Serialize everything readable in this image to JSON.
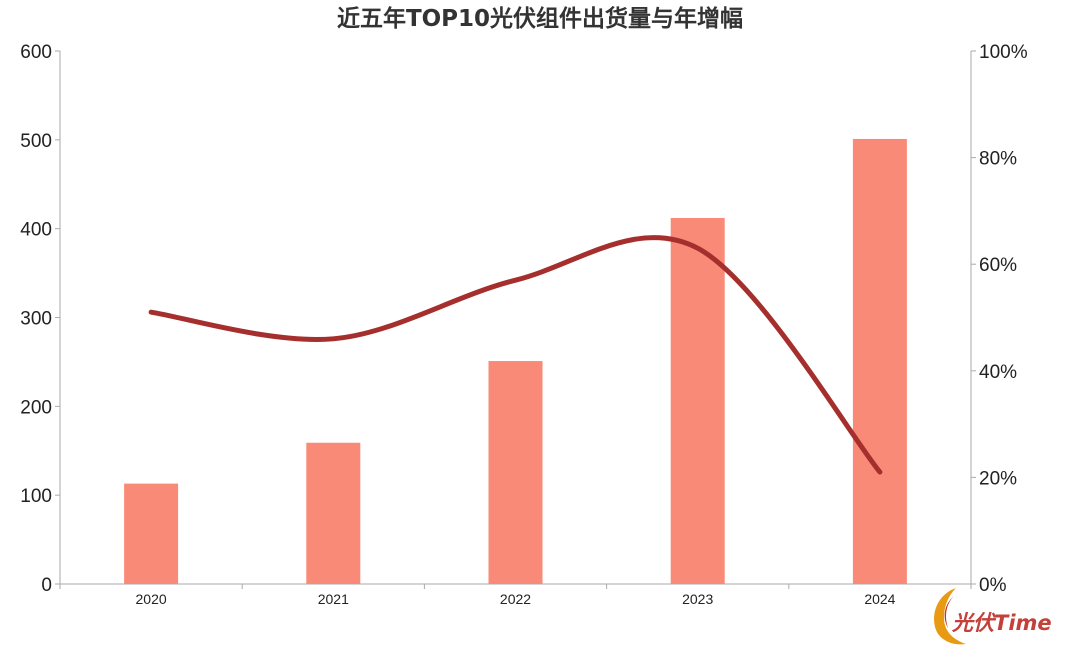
{
  "chart_data": {
    "type": "bar+line",
    "title": "近五年TOP10光伏组件出货量与年增幅",
    "categories": [
      "2020",
      "2021",
      "2022",
      "2023",
      "2024"
    ],
    "series": [
      {
        "type": "bar",
        "axis": "left",
        "values": [
          113,
          159,
          251,
          412,
          501
        ]
      },
      {
        "type": "line",
        "axis": "right",
        "values": [
          51,
          46,
          57,
          63,
          21
        ]
      }
    ],
    "y_left": {
      "ylim": [
        0,
        600
      ],
      "ticks": [
        "0",
        "100",
        "200",
        "300",
        "400",
        "500",
        "600"
      ]
    },
    "y_right": {
      "ylim": [
        0,
        100
      ],
      "ticks": [
        "0%",
        "20%",
        "40%",
        "60%",
        "80%",
        "100%"
      ]
    },
    "grid": false,
    "legend": "none",
    "colors": {
      "bar": "#fa8a78",
      "line": "#a52f2d",
      "axis": "#aaaaaa"
    }
  },
  "watermark": {
    "text": "光伏Time"
  }
}
